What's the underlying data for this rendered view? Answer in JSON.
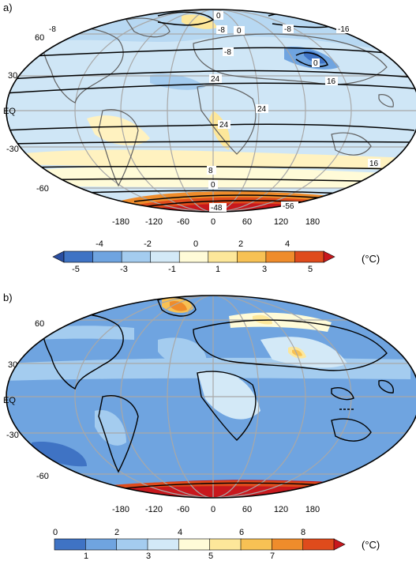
{
  "panels": [
    {
      "label": "a)",
      "lat_labels": [
        "60",
        "30",
        "EQ",
        "-30",
        "-60"
      ],
      "lon_labels": [
        "-180",
        "-120",
        "-60",
        "0",
        "60",
        "120",
        "180"
      ],
      "contour_labels": [
        "0",
        "-8",
        "-8",
        "0",
        "-8",
        "-16",
        "-8",
        "0",
        "24",
        "16",
        "24",
        "24",
        "8",
        "0",
        "16",
        "-48",
        "-56"
      ],
      "colorbar": {
        "top_ticks": [
          "-4",
          "-2",
          "0",
          "2",
          "4"
        ],
        "bottom_ticks": [
          "-5",
          "-3",
          "-1",
          "1",
          "3",
          "5"
        ],
        "unit": "(°C)",
        "colors": [
          "#2a4ea0",
          "#3f73c4",
          "#6fa4e0",
          "#a4ccef",
          "#d3e9f7",
          "#fffbd8",
          "#fde79a",
          "#f7c154",
          "#ef8c2b",
          "#df4b1c",
          "#c8181d"
        ]
      }
    },
    {
      "label": "b)",
      "lat_labels": [
        "60",
        "30",
        "EQ",
        "-30",
        "-60"
      ],
      "lon_labels": [
        "-180",
        "-120",
        "-60",
        "0",
        "60",
        "120",
        "180"
      ],
      "colorbar": {
        "top_ticks": [
          "0",
          "2",
          "4",
          "6",
          "8"
        ],
        "bottom_ticks": [
          "1",
          "3",
          "5",
          "7"
        ],
        "unit": "(°C)",
        "colors": [
          "#3f73c4",
          "#6fa4e0",
          "#a4ccef",
          "#d3e9f7",
          "#fffbd8",
          "#fde79a",
          "#f7c154",
          "#ef8c2b",
          "#df4b1c",
          "#c8181d"
        ]
      }
    }
  ]
}
